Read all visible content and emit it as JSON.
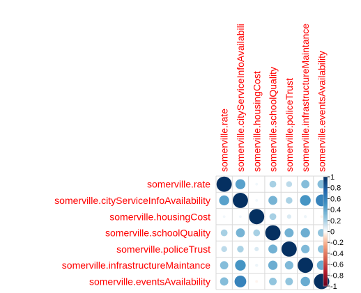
{
  "chart_data": {
    "type": "heatmap",
    "variables": [
      "somerville.rate",
      "somerville.cityServiceInfoAvailability",
      "somerville.housingCost",
      "somerville.schoolQuality",
      "somerville.policeTrust",
      "somerville.infrastructureMaintance",
      "somerville.eventsAvailability"
    ],
    "col_labels": [
      "somerville.rate",
      "somerville.cityServiceInfoAvailabili",
      "somerville.housingCost",
      "somerville.schoolQuality",
      "somerville.policeTrust",
      "somerville.infrastructureMaintance",
      "somerville.eventsAvailability"
    ],
    "matrix": [
      [
        1.0,
        0.43,
        0.03,
        0.2,
        0.15,
        0.29,
        0.29
      ],
      [
        0.43,
        1.0,
        0.03,
        0.34,
        0.19,
        0.49,
        0.59
      ],
      [
        0.03,
        0.03,
        1.0,
        0.2,
        0.08,
        0.04,
        -0.03
      ],
      [
        0.2,
        0.34,
        0.2,
        1.0,
        0.35,
        0.37,
        0.25
      ],
      [
        0.15,
        0.19,
        0.08,
        0.35,
        1.0,
        0.31,
        0.25
      ],
      [
        0.29,
        0.49,
        0.04,
        0.37,
        0.31,
        1.0,
        0.38
      ],
      [
        0.29,
        0.59,
        -0.03,
        0.25,
        0.25,
        0.38,
        1.0
      ]
    ],
    "colorbar": {
      "ticks": [
        "1",
        "0.8",
        "0.6",
        "0.4",
        "0.2",
        "0",
        "-0.2",
        "-0.4",
        "-0.6",
        "-0.8",
        "-1"
      ],
      "range": [
        -1,
        1
      ]
    },
    "label_color": "#ff0000",
    "positive_color": "#053061",
    "negative_color": "#67001f",
    "grid": true
  }
}
